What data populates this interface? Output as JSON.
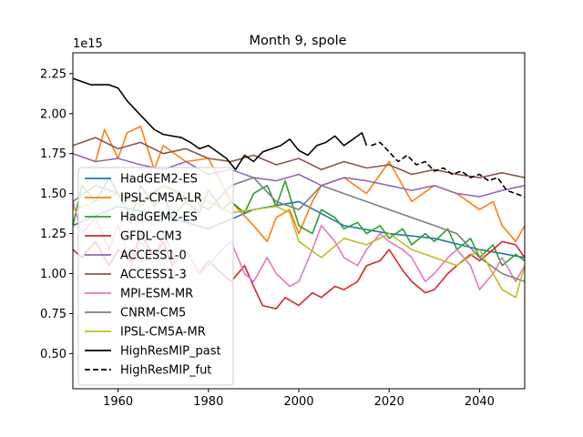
{
  "chart_data": {
    "type": "line",
    "title": "Month 9, spole",
    "y_offset_label": "1e15",
    "xlim": [
      1950,
      2050
    ],
    "ylim": [
      0.28,
      2.38
    ],
    "xticks": [
      1960,
      1980,
      2000,
      2020,
      2040
    ],
    "xtick_labels": [
      "1960",
      "1980",
      "2000",
      "2020",
      "2040"
    ],
    "yticks": [
      0.5,
      0.75,
      1.0,
      1.25,
      1.5,
      1.75,
      2.0,
      2.25
    ],
    "ytick_labels": [
      "0.50",
      "0.75",
      "1.00",
      "1.25",
      "1.50",
      "1.75",
      "2.00",
      "2.25"
    ],
    "legend_placement": "lower-left",
    "series": [
      {
        "name": "HadGEM2-ES",
        "color": "#1f77b4",
        "style": "solid",
        "x": [
          1950,
          1960,
          1970,
          1980,
          1990,
          2000,
          2010,
          2020,
          2030,
          2040,
          2050
        ],
        "y": [
          1.3,
          1.42,
          1.36,
          1.28,
          1.4,
          1.45,
          1.3,
          1.25,
          1.22,
          1.15,
          1.1
        ]
      },
      {
        "name": "IPSL-CM5A-LR",
        "color": "#ff7f0e",
        "style": "solid",
        "x": [
          1950,
          1955,
          1957,
          1960,
          1962,
          1965,
          1968,
          1970,
          1975,
          1980,
          1985,
          1990,
          1993,
          1995,
          1998,
          2000,
          2003,
          2005,
          2010,
          2015,
          2020,
          2025,
          2030,
          2035,
          2040,
          2043,
          2045,
          2048,
          2050
        ],
        "y": [
          1.75,
          1.7,
          1.9,
          1.72,
          1.88,
          1.92,
          1.65,
          1.8,
          1.7,
          1.72,
          1.45,
          1.3,
          1.2,
          1.35,
          1.4,
          1.25,
          1.45,
          1.55,
          1.6,
          1.5,
          1.7,
          1.45,
          1.55,
          1.5,
          1.4,
          1.45,
          1.3,
          1.2,
          1.3
        ]
      },
      {
        "name": "HadGEM2-ES",
        "color": "#2ca02c",
        "style": "solid",
        "x": [
          1950,
          1952,
          1955,
          1958,
          1960,
          1963,
          1965,
          1968,
          1970,
          1972,
          1975,
          1978,
          1980,
          1983,
          1985,
          1988,
          1990,
          1993,
          1995,
          1997,
          2000,
          2003,
          2005,
          2008,
          2010,
          2013,
          2015,
          2018,
          2020,
          2023,
          2025,
          2028,
          2030,
          2033,
          2035,
          2038,
          2040,
          2043,
          2045,
          2048,
          2050
        ],
        "y": [
          1.3,
          1.55,
          1.45,
          1.6,
          1.5,
          1.35,
          1.55,
          1.42,
          1.5,
          1.35,
          1.45,
          1.38,
          1.52,
          1.4,
          1.45,
          1.38,
          1.5,
          1.55,
          1.42,
          1.58,
          1.3,
          1.25,
          1.4,
          1.35,
          1.28,
          1.32,
          1.25,
          1.3,
          1.22,
          1.28,
          1.18,
          1.25,
          1.2,
          1.28,
          1.15,
          1.22,
          1.1,
          1.18,
          1.05,
          1.12,
          1.08
        ]
      },
      {
        "name": "GFDL-CM3",
        "color": "#d62728",
        "style": "solid",
        "x": [
          1950,
          1952,
          1955,
          1958,
          1960,
          1963,
          1965,
          1968,
          1970,
          1972,
          1975,
          1978,
          1980,
          1983,
          1985,
          1988,
          1990,
          1992,
          1995,
          1997,
          2000,
          2003,
          2005,
          2008,
          2010,
          2013,
          2015,
          2018,
          2020,
          2023,
          2025,
          2028,
          2030,
          2033,
          2035,
          2038,
          2040,
          2043,
          2045,
          2048,
          2050
        ],
        "y": [
          1.15,
          1.1,
          1.2,
          1.05,
          1.15,
          1.08,
          1.25,
          1.1,
          1.2,
          1.05,
          1.15,
          1.0,
          1.08,
          1.0,
          0.95,
          1.05,
          0.92,
          0.8,
          0.78,
          0.85,
          0.8,
          0.88,
          0.85,
          0.92,
          0.9,
          0.95,
          1.05,
          1.08,
          1.15,
          1.02,
          0.95,
          0.88,
          0.9,
          1.0,
          1.05,
          1.12,
          1.08,
          1.15,
          1.2,
          1.18,
          1.1
        ]
      },
      {
        "name": "ACCESS1-0",
        "color": "#9467bd",
        "style": "solid",
        "x": [
          1950,
          1955,
          1960,
          1965,
          1970,
          1975,
          1980,
          1985,
          1990,
          1995,
          2000,
          2005,
          2010,
          2015,
          2020,
          2025,
          2030,
          2035,
          2040,
          2045,
          2050
        ],
        "y": [
          1.75,
          1.7,
          1.72,
          1.68,
          1.65,
          1.7,
          1.62,
          1.65,
          1.6,
          1.58,
          1.62,
          1.55,
          1.6,
          1.58,
          1.55,
          1.52,
          1.55,
          1.5,
          1.48,
          1.52,
          1.55
        ]
      },
      {
        "name": "ACCESS1-3",
        "color": "#8c564b",
        "style": "solid",
        "x": [
          1950,
          1955,
          1960,
          1965,
          1970,
          1975,
          1980,
          1985,
          1990,
          1995,
          2000,
          2005,
          2010,
          2015,
          2020,
          2025,
          2030,
          2035,
          2040,
          2045,
          2050
        ],
        "y": [
          1.8,
          1.85,
          1.78,
          1.82,
          1.75,
          1.78,
          1.72,
          1.7,
          1.74,
          1.68,
          1.72,
          1.65,
          1.7,
          1.66,
          1.68,
          1.62,
          1.65,
          1.62,
          1.6,
          1.63,
          1.6
        ]
      },
      {
        "name": "MPI-ESM-MR",
        "color": "#e377c2",
        "style": "solid",
        "x": [
          1950,
          1952,
          1955,
          1958,
          1960,
          1963,
          1965,
          1968,
          1970,
          1973,
          1975,
          1978,
          1980,
          1983,
          1985,
          1988,
          1990,
          1993,
          1995,
          1998,
          2000,
          2003,
          2005,
          2008,
          2010,
          2013,
          2015,
          2018,
          2020,
          2023,
          2025,
          2028,
          2030,
          2033,
          2035,
          2038,
          2040,
          2043,
          2045,
          2048,
          2050
        ],
        "y": [
          1.45,
          1.25,
          1.35,
          1.15,
          1.3,
          1.05,
          1.2,
          1.1,
          1.25,
          1.08,
          1.15,
          1.0,
          1.05,
          1.15,
          1.2,
          1.0,
          0.95,
          1.1,
          1.0,
          0.92,
          0.95,
          1.15,
          1.3,
          1.2,
          1.1,
          1.05,
          1.15,
          1.25,
          1.2,
          1.15,
          1.1,
          0.95,
          1.0,
          1.1,
          1.15,
          1.05,
          0.9,
          1.0,
          1.1,
          0.95,
          1.05
        ]
      },
      {
        "name": "CNRM-CM5",
        "color": "#7f7f7f",
        "style": "solid",
        "x": [
          1950,
          1955,
          1960,
          1965,
          1970,
          1975,
          1980,
          1985,
          1990,
          1995,
          2000,
          2005,
          2010,
          2015,
          2020,
          2025,
          2030,
          2035,
          2040,
          2045,
          2050
        ],
        "y": [
          1.45,
          1.55,
          1.5,
          1.45,
          1.55,
          1.48,
          1.4,
          1.55,
          1.6,
          1.45,
          1.4,
          1.55,
          1.5,
          1.45,
          1.4,
          1.35,
          1.3,
          1.25,
          1.1,
          1.0,
          0.95
        ]
      },
      {
        "name": "IPSL-CM5A-MR",
        "color": "#bcbd22",
        "style": "solid",
        "x": [
          1950,
          1955,
          1960,
          1965,
          1970,
          1975,
          1980,
          1985,
          1990,
          1995,
          1998,
          2000,
          2005,
          2010,
          2015,
          2020,
          2025,
          2030,
          2035,
          2040,
          2045,
          2048,
          2050
        ],
        "y": [
          1.4,
          1.45,
          1.5,
          1.42,
          1.55,
          1.5,
          1.45,
          1.38,
          1.4,
          1.42,
          1.38,
          1.2,
          1.1,
          1.22,
          1.18,
          1.25,
          1.15,
          1.1,
          1.05,
          1.15,
          0.9,
          0.85,
          1.05
        ]
      },
      {
        "name": "HighResMIP_past",
        "color": "#000000",
        "style": "solid",
        "x": [
          1950,
          1952,
          1954,
          1956,
          1958,
          1960,
          1962,
          1964,
          1966,
          1968,
          1970,
          1972,
          1974,
          1976,
          1978,
          1980,
          1982,
          1984,
          1986,
          1988,
          1990,
          1992,
          1994,
          1996,
          1998,
          2000,
          2002,
          2004,
          2006,
          2008,
          2010,
          2012,
          2014,
          2015
        ],
        "y": [
          2.22,
          2.2,
          2.18,
          2.18,
          2.18,
          2.16,
          2.08,
          2.02,
          1.96,
          1.9,
          1.87,
          1.86,
          1.85,
          1.82,
          1.78,
          1.8,
          1.76,
          1.72,
          1.65,
          1.74,
          1.7,
          1.76,
          1.78,
          1.8,
          1.84,
          1.77,
          1.74,
          1.8,
          1.82,
          1.86,
          1.8,
          1.84,
          1.88,
          1.8
        ]
      },
      {
        "name": "HighResMIP_fut",
        "color": "#000000",
        "style": "dashed",
        "x": [
          2016,
          2018,
          2020,
          2022,
          2024,
          2026,
          2028,
          2030,
          2032,
          2034,
          2036,
          2038,
          2040,
          2042,
          2044,
          2046,
          2048,
          2050
        ],
        "y": [
          1.8,
          1.82,
          1.76,
          1.7,
          1.74,
          1.68,
          1.7,
          1.64,
          1.66,
          1.62,
          1.64,
          1.6,
          1.62,
          1.58,
          1.6,
          1.52,
          1.5,
          1.48
        ]
      }
    ]
  }
}
